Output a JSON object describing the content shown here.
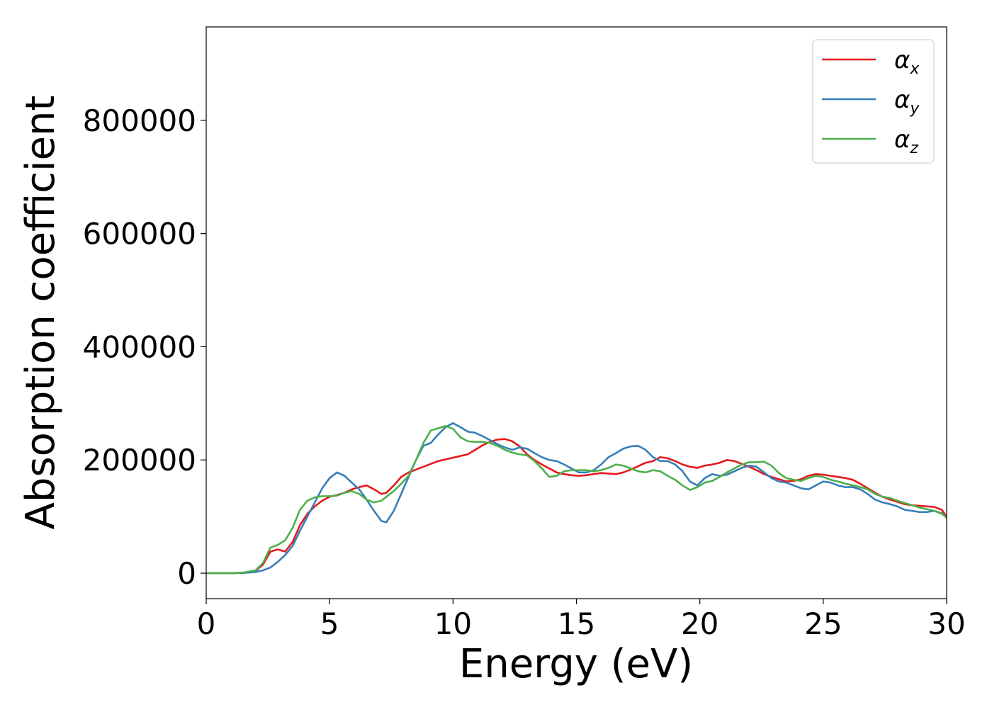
{
  "chart_data": {
    "type": "line",
    "title": "",
    "xlabel": "Energy (eV)",
    "ylabel": "Absorption coefficient",
    "xlim": [
      0,
      30
    ],
    "ylim": [
      -45000,
      965000
    ],
    "xticks": [
      0,
      5,
      10,
      15,
      20,
      25,
      30
    ],
    "xtick_labels": [
      "0",
      "5",
      "10",
      "15",
      "20",
      "25",
      "30"
    ],
    "yticks": [
      0,
      200000,
      400000,
      600000,
      800000
    ],
    "ytick_labels": [
      "0",
      "200000",
      "400000",
      "600000",
      "800000"
    ],
    "grid": false,
    "legend_position": "top-right",
    "x": [
      0,
      0.5,
      1,
      1.5,
      2,
      2.3,
      2.6,
      2.9,
      3.2,
      3.5,
      3.8,
      4.1,
      4.4,
      4.7,
      5,
      5.3,
      5.6,
      5.9,
      6.2,
      6.5,
      6.8,
      7.1,
      7.3,
      7.6,
      7.9,
      8.2,
      8.5,
      8.8,
      9.1,
      9.4,
      9.7,
      10,
      10.3,
      10.6,
      10.9,
      11.2,
      11.5,
      11.8,
      12.1,
      12.4,
      12.7,
      13,
      13.3,
      13.6,
      13.9,
      14.2,
      14.5,
      14.8,
      15.1,
      15.4,
      15.7,
      16,
      16.3,
      16.6,
      16.9,
      17.2,
      17.5,
      17.8,
      18.1,
      18.4,
      18.7,
      19,
      19.3,
      19.6,
      19.9,
      20.2,
      20.5,
      20.8,
      21.1,
      21.4,
      21.7,
      22,
      22.3,
      22.6,
      22.9,
      23.2,
      23.5,
      23.8,
      24.1,
      24.4,
      24.7,
      25,
      25.3,
      25.6,
      25.9,
      26.2,
      26.5,
      26.8,
      27.1,
      27.4,
      27.7,
      28,
      28.3,
      28.6,
      28.9,
      29.2,
      29.5,
      29.8,
      30
    ],
    "series": [
      {
        "name": "αx",
        "label_main": "α",
        "label_sub": "x",
        "color": "#e41a1c",
        "values": [
          0,
          0,
          0,
          1000,
          4000,
          15000,
          38000,
          42000,
          38000,
          55000,
          85000,
          105000,
          118000,
          128000,
          135000,
          138000,
          142000,
          148000,
          152000,
          155000,
          148000,
          140000,
          142000,
          155000,
          170000,
          178000,
          183000,
          188000,
          193000,
          198000,
          201000,
          204000,
          207000,
          210000,
          218000,
          226000,
          232000,
          236000,
          237000,
          233000,
          224000,
          210000,
          200000,
          192000,
          185000,
          178000,
          175000,
          173000,
          172000,
          173000,
          175000,
          177000,
          176000,
          175000,
          178000,
          183000,
          189000,
          195000,
          198000,
          205000,
          203000,
          198000,
          192000,
          188000,
          186000,
          190000,
          192000,
          195000,
          200000,
          198000,
          193000,
          188000,
          182000,
          175000,
          170000,
          166000,
          162000,
          163000,
          166000,
          172000,
          175000,
          174000,
          172000,
          170000,
          168000,
          165000,
          158000,
          150000,
          142000,
          135000,
          130000,
          126000,
          122000,
          120000,
          119000,
          118000,
          117000,
          112000,
          100000
        ]
      },
      {
        "name": "αy",
        "label_main": "α",
        "label_sub": "y",
        "color": "#377eb8",
        "values": [
          0,
          0,
          0,
          500,
          2000,
          5000,
          10000,
          20000,
          32000,
          48000,
          75000,
          100000,
          125000,
          150000,
          168000,
          178000,
          172000,
          160000,
          148000,
          130000,
          110000,
          92000,
          90000,
          110000,
          140000,
          170000,
          200000,
          225000,
          230000,
          245000,
          258000,
          265000,
          258000,
          250000,
          248000,
          242000,
          235000,
          228000,
          222000,
          218000,
          222000,
          220000,
          212000,
          205000,
          200000,
          198000,
          192000,
          185000,
          178000,
          178000,
          182000,
          192000,
          205000,
          212000,
          220000,
          224000,
          225000,
          218000,
          205000,
          198000,
          198000,
          192000,
          180000,
          162000,
          155000,
          168000,
          175000,
          172000,
          174000,
          180000,
          186000,
          190000,
          188000,
          178000,
          168000,
          162000,
          160000,
          155000,
          150000,
          148000,
          155000,
          162000,
          160000,
          155000,
          152000,
          152000,
          148000,
          140000,
          130000,
          125000,
          122000,
          118000,
          112000,
          110000,
          108000,
          108000,
          110000,
          106000,
          98000
        ]
      },
      {
        "name": "αz",
        "label_main": "α",
        "label_sub": "z",
        "color": "#4daf4a",
        "values": [
          0,
          0,
          0,
          1000,
          5000,
          18000,
          45000,
          50000,
          58000,
          80000,
          112000,
          128000,
          134000,
          136000,
          136000,
          137000,
          142000,
          145000,
          140000,
          130000,
          125000,
          128000,
          135000,
          145000,
          158000,
          172000,
          200000,
          230000,
          252000,
          256000,
          260000,
          255000,
          240000,
          233000,
          232000,
          232000,
          230000,
          225000,
          218000,
          213000,
          210000,
          208000,
          198000,
          185000,
          170000,
          172000,
          180000,
          182000,
          182000,
          182000,
          180000,
          182000,
          186000,
          192000,
          190000,
          185000,
          180000,
          178000,
          182000,
          180000,
          172000,
          165000,
          155000,
          147000,
          152000,
          160000,
          163000,
          170000,
          178000,
          185000,
          192000,
          196000,
          196000,
          197000,
          190000,
          177000,
          168000,
          165000,
          163000,
          168000,
          172000,
          170000,
          165000,
          162000,
          158000,
          155000,
          152000,
          148000,
          140000,
          135000,
          133000,
          128000,
          124000,
          120000,
          116000,
          113000,
          110000,
          105000,
          98000
        ]
      }
    ]
  }
}
